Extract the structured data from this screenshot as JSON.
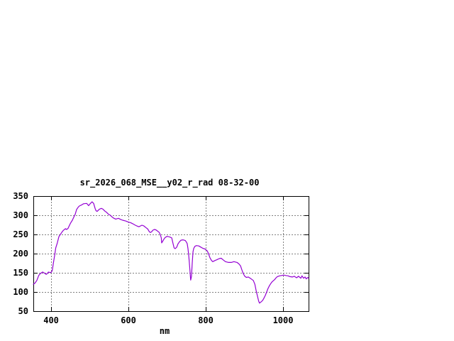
{
  "page": {
    "background": "#ffffff"
  },
  "chart_data": {
    "type": "line",
    "title": "sr_2026_068_MSE__y02_r_rad 08-32-00",
    "xlabel": "nm",
    "ylabel": "",
    "xlim": [
      354,
      1066
    ],
    "ylim": [
      50,
      350
    ],
    "x_ticks": [
      400,
      600,
      800,
      1000
    ],
    "y_ticks": [
      50,
      100,
      150,
      200,
      250,
      300,
      350
    ],
    "grid": true,
    "legend": "none",
    "line_color": "#9400d3",
    "grid_color": "#808080",
    "axis_color": "#000000",
    "series": [
      {
        "points": [
          [
            354,
            120
          ],
          [
            358,
            123
          ],
          [
            363,
            130
          ],
          [
            368,
            143
          ],
          [
            372,
            148
          ],
          [
            378,
            152
          ],
          [
            383,
            149
          ],
          [
            387,
            146
          ],
          [
            390,
            148
          ],
          [
            393,
            152
          ],
          [
            396,
            151
          ],
          [
            400,
            151
          ],
          [
            403,
            156
          ],
          [
            406,
            176
          ],
          [
            409,
            195
          ],
          [
            412,
            215
          ],
          [
            416,
            228
          ],
          [
            420,
            244
          ],
          [
            424,
            250
          ],
          [
            428,
            256
          ],
          [
            431,
            260
          ],
          [
            437,
            265
          ],
          [
            440,
            263
          ],
          [
            444,
            266
          ],
          [
            448,
            275
          ],
          [
            451,
            281
          ],
          [
            455,
            287
          ],
          [
            459,
            296
          ],
          [
            462,
            302
          ],
          [
            466,
            315
          ],
          [
            470,
            321
          ],
          [
            473,
            324
          ],
          [
            479,
            327
          ],
          [
            484,
            330
          ],
          [
            492,
            331
          ],
          [
            497,
            325
          ],
          [
            501,
            330
          ],
          [
            506,
            335
          ],
          [
            510,
            331
          ],
          [
            514,
            317
          ],
          [
            516,
            312
          ],
          [
            519,
            310
          ],
          [
            525,
            316
          ],
          [
            530,
            318
          ],
          [
            534,
            316
          ],
          [
            539,
            311
          ],
          [
            543,
            308
          ],
          [
            549,
            302
          ],
          [
            552,
            301
          ],
          [
            556,
            297
          ],
          [
            561,
            293
          ],
          [
            567,
            290
          ],
          [
            574,
            292
          ],
          [
            580,
            289
          ],
          [
            585,
            287
          ],
          [
            593,
            285
          ],
          [
            600,
            282
          ],
          [
            605,
            281
          ],
          [
            611,
            278
          ],
          [
            616,
            275
          ],
          [
            622,
            272
          ],
          [
            627,
            270
          ],
          [
            631,
            272
          ],
          [
            635,
            274
          ],
          [
            640,
            272
          ],
          [
            645,
            268
          ],
          [
            650,
            264
          ],
          [
            654,
            257
          ],
          [
            657,
            255
          ],
          [
            660,
            257
          ],
          [
            663,
            261
          ],
          [
            667,
            263
          ],
          [
            671,
            262
          ],
          [
            675,
            259
          ],
          [
            679,
            256
          ],
          [
            682,
            251
          ],
          [
            685,
            241
          ],
          [
            686,
            228
          ],
          [
            689,
            233
          ],
          [
            692,
            238
          ],
          [
            695,
            242
          ],
          [
            700,
            245
          ],
          [
            704,
            244
          ],
          [
            708,
            243
          ],
          [
            712,
            241
          ],
          [
            715,
            228
          ],
          [
            718,
            215
          ],
          [
            721,
            213
          ],
          [
            725,
            217
          ],
          [
            728,
            225
          ],
          [
            732,
            231
          ],
          [
            736,
            235
          ],
          [
            741,
            236
          ],
          [
            747,
            234
          ],
          [
            750,
            230
          ],
          [
            752,
            226
          ],
          [
            754,
            213
          ],
          [
            756,
            194
          ],
          [
            758,
            170
          ],
          [
            760,
            145
          ],
          [
            761,
            131
          ],
          [
            763,
            140
          ],
          [
            765,
            176
          ],
          [
            767,
            205
          ],
          [
            769,
            214
          ],
          [
            772,
            219
          ],
          [
            776,
            221
          ],
          [
            782,
            220
          ],
          [
            787,
            217
          ],
          [
            792,
            214
          ],
          [
            798,
            212
          ],
          [
            804,
            207
          ],
          [
            807,
            200
          ],
          [
            811,
            189
          ],
          [
            815,
            182
          ],
          [
            818,
            179
          ],
          [
            824,
            182
          ],
          [
            829,
            184
          ],
          [
            835,
            187
          ],
          [
            840,
            188
          ],
          [
            846,
            183
          ],
          [
            851,
            179
          ],
          [
            859,
            177
          ],
          [
            866,
            177
          ],
          [
            873,
            179
          ],
          [
            881,
            177
          ],
          [
            886,
            173
          ],
          [
            890,
            168
          ],
          [
            894,
            156
          ],
          [
            897,
            148
          ],
          [
            901,
            141
          ],
          [
            905,
            138
          ],
          [
            910,
            139
          ],
          [
            915,
            136
          ],
          [
            919,
            133
          ],
          [
            923,
            130
          ],
          [
            927,
            120
          ],
          [
            930,
            105
          ],
          [
            934,
            88
          ],
          [
            937,
            76
          ],
          [
            939,
            71
          ],
          [
            943,
            74
          ],
          [
            947,
            78
          ],
          [
            950,
            83
          ],
          [
            954,
            91
          ],
          [
            958,
            101
          ],
          [
            961,
            109
          ],
          [
            965,
            117
          ],
          [
            969,
            123
          ],
          [
            972,
            127
          ],
          [
            978,
            132
          ],
          [
            982,
            137
          ],
          [
            985,
            140
          ],
          [
            991,
            142
          ],
          [
            996,
            143
          ],
          [
            1002,
            144
          ],
          [
            1007,
            143
          ],
          [
            1013,
            142
          ],
          [
            1018,
            140
          ],
          [
            1024,
            139
          ],
          [
            1029,
            141
          ],
          [
            1035,
            137
          ],
          [
            1040,
            141
          ],
          [
            1046,
            136
          ],
          [
            1049,
            142
          ],
          [
            1053,
            136
          ],
          [
            1057,
            139
          ],
          [
            1060,
            134
          ],
          [
            1064,
            138
          ],
          [
            1066,
            136
          ]
        ]
      }
    ]
  }
}
